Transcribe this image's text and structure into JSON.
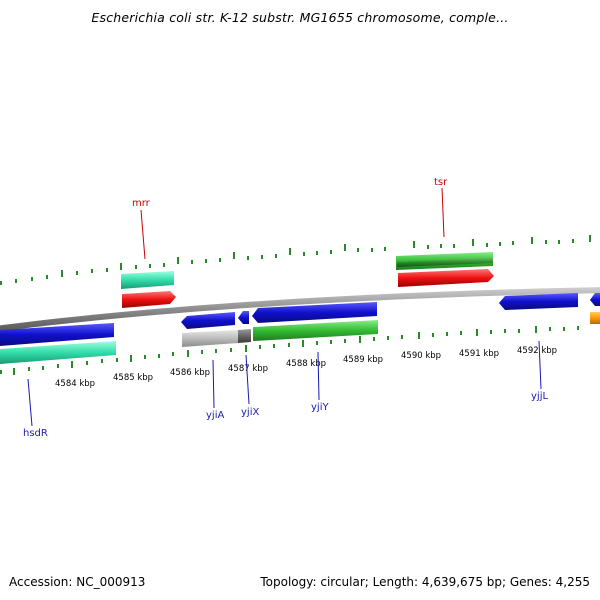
{
  "title": "Escherichia coli str. K-12 substr. MG1655 chromosome, comple...",
  "footer": {
    "accession": "Accession: NC_000913",
    "summary": "Topology: circular; Length: 4,639,675 bp; Genes: 4,255"
  },
  "scale_labels": [
    "4584 kbp",
    "4585 kbp",
    "4586 kbp",
    "4587 kbp",
    "4588 kbp",
    "4589 kbp",
    "4590 kbp",
    "4591 kbp",
    "4592 kbp"
  ],
  "gene_labels": {
    "forward": [
      "mrr",
      "tsr"
    ],
    "reverse": [
      "hsdR",
      "yjiA",
      "yjiX",
      "yjiY",
      "yjjL"
    ]
  },
  "colors": {
    "backbone": "#8c8c8c",
    "tick": "#2a8a2a",
    "forward_label": "#cc0000",
    "reverse_label": "#1a1ab0",
    "gene_blue": "#1010cc",
    "gene_green": "#33bb33",
    "gene_teal": "#33ddaa",
    "gene_red": "#ee1111",
    "gene_darkgreen": "#2a8a2a",
    "gene_gray": "#bbbbbb",
    "gene_darkgray": "#666666",
    "gene_orange": "#ff9900"
  }
}
